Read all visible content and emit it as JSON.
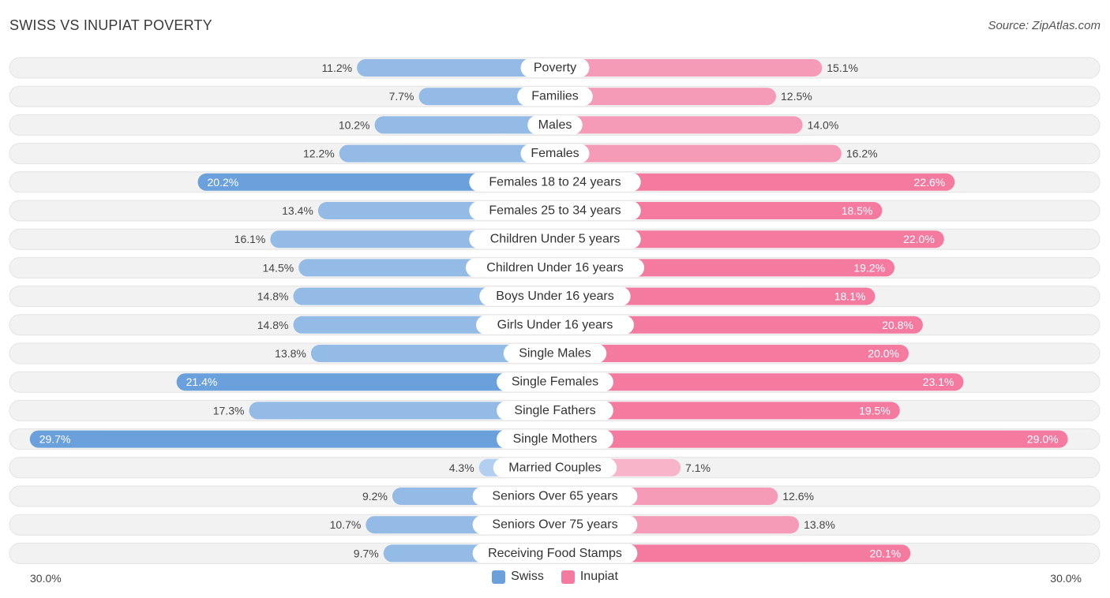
{
  "title": "SWISS VS INUPIAT POVERTY",
  "source": "Source: ZipAtlas.com",
  "colors": {
    "swiss": "#6aa1dc",
    "inupiat": "#f47aa0",
    "swiss_light": "#a9c9ee",
    "inupiat_light": "#f7a9c2"
  },
  "chart_data": {
    "type": "bar",
    "orientation": "horizontal-diverging",
    "categories": [
      "Poverty",
      "Families",
      "Males",
      "Females",
      "Females 18 to 24 years",
      "Females 25 to 34 years",
      "Children Under 5 years",
      "Children Under 16 years",
      "Boys Under 16 years",
      "Girls Under 16 years",
      "Single Males",
      "Single Females",
      "Single Fathers",
      "Single Mothers",
      "Married Couples",
      "Seniors Over 65 years",
      "Seniors Over 75 years",
      "Receiving Food Stamps"
    ],
    "series": [
      {
        "name": "Swiss",
        "values": [
          11.2,
          7.7,
          10.2,
          12.2,
          20.2,
          13.4,
          16.1,
          14.5,
          14.8,
          14.8,
          13.8,
          21.4,
          17.3,
          29.7,
          4.3,
          9.2,
          10.7,
          9.7
        ],
        "labels": [
          "11.2%",
          "7.7%",
          "10.2%",
          "12.2%",
          "20.2%",
          "13.4%",
          "16.1%",
          "14.5%",
          "14.8%",
          "14.8%",
          "13.8%",
          "21.4%",
          "17.3%",
          "29.7%",
          "4.3%",
          "9.2%",
          "10.7%",
          "9.7%"
        ]
      },
      {
        "name": "Inupiat",
        "values": [
          15.1,
          12.5,
          14.0,
          16.2,
          22.6,
          18.5,
          22.0,
          19.2,
          18.1,
          20.8,
          20.0,
          23.1,
          19.5,
          29.0,
          7.1,
          12.6,
          13.8,
          20.1
        ],
        "labels": [
          "15.1%",
          "12.5%",
          "14.0%",
          "16.2%",
          "22.6%",
          "18.5%",
          "22.0%",
          "19.2%",
          "18.1%",
          "20.8%",
          "20.0%",
          "23.1%",
          "19.5%",
          "29.0%",
          "7.1%",
          "12.6%",
          "13.8%",
          "20.1%"
        ]
      }
    ],
    "xlim": [
      0,
      30
    ],
    "axis_min_label": "30.0%",
    "axis_max_label": "30.0%",
    "legend": [
      "Swiss",
      "Inupiat"
    ]
  }
}
